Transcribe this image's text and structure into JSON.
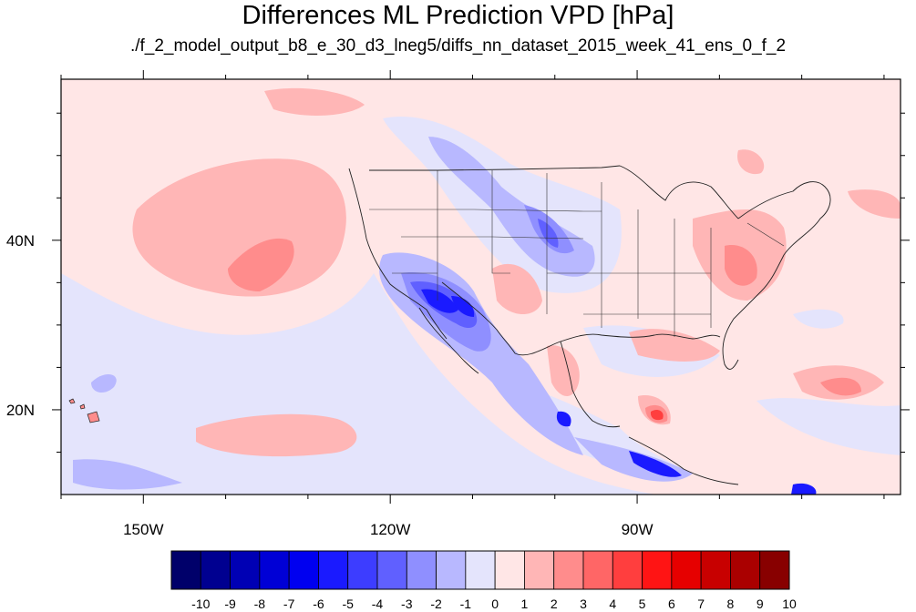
{
  "title": "Differences ML Prediction VPD [hPa]",
  "subtitle": "./f_2_model_output_b8_e_30_d3_lneg5/diffs_nn_dataset_2015_week_41_ens_0_f_2",
  "map": {
    "lon_range": [
      -160,
      -58
    ],
    "lat_range": [
      10,
      59
    ],
    "lon_ticks": [
      {
        "value": -150,
        "label": "150W"
      },
      {
        "value": -120,
        "label": "120W"
      },
      {
        "value": -90,
        "label": "90W"
      }
    ],
    "lat_ticks": [
      {
        "value": 40,
        "label": "40N"
      },
      {
        "value": 20,
        "label": "20N"
      }
    ]
  },
  "colorbar": {
    "labels": [
      "-10",
      "-9",
      "-8",
      "-7",
      "-6",
      "-5",
      "-4",
      "-3",
      "-2",
      "-1",
      "0",
      "1",
      "2",
      "3",
      "4",
      "5",
      "6",
      "7",
      "8",
      "9",
      "10"
    ],
    "colors": [
      "#00006a",
      "#000090",
      "#0000b4",
      "#0000d6",
      "#0000f0",
      "#1a1aff",
      "#3d3dff",
      "#6060ff",
      "#8f8fff",
      "#b8b8ff",
      "#e4e4fc",
      "#ffe6e6",
      "#ffb6b6",
      "#ff8c8c",
      "#ff6666",
      "#ff3e3e",
      "#ff1414",
      "#e60000",
      "#c80000",
      "#aa0000",
      "#880000"
    ]
  }
}
